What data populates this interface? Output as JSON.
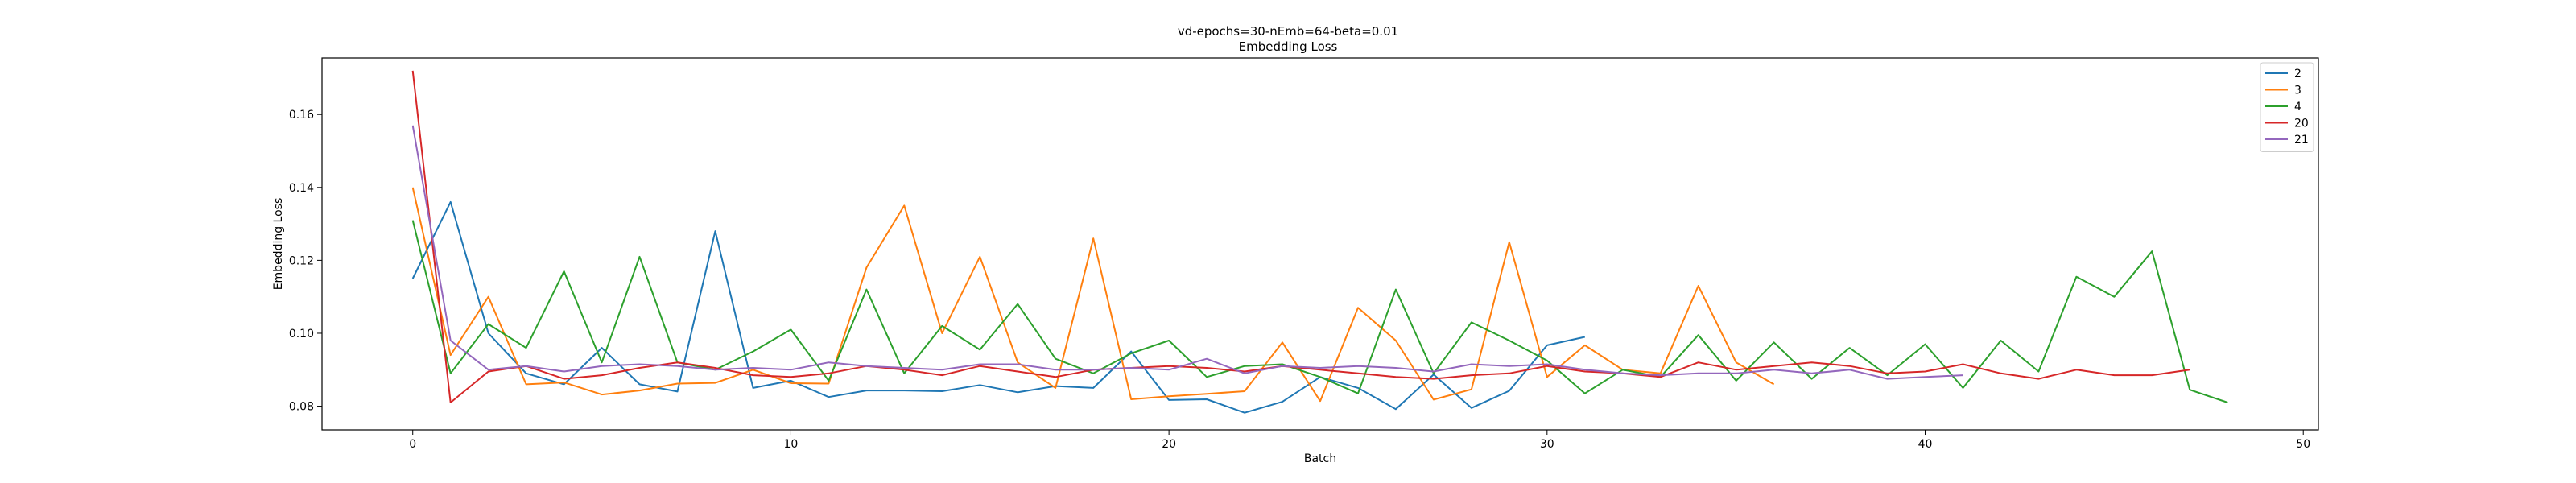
{
  "chart_data": {
    "type": "line",
    "title": "vd-epochs=30-nEmb=64-beta=0.01",
    "subtitle": "Embedding Loss",
    "xlabel": "Batch",
    "ylabel": "Embedding Loss",
    "xlim": [
      -2.4,
      50.4
    ],
    "ylim": [
      0.0735,
      0.1755
    ],
    "xticks": [
      0,
      10,
      20,
      30,
      40,
      50
    ],
    "yticks": [
      0.08,
      0.1,
      0.12,
      0.14,
      0.16
    ],
    "ytick_labels": [
      "0.08",
      "0.10",
      "0.12",
      "0.14",
      "0.16"
    ],
    "grid": false,
    "legend_position": "top-right",
    "series": [
      {
        "name": "2",
        "color": "#1f77b4",
        "values": [
          0.115,
          0.136,
          0.1,
          0.089,
          0.086,
          0.096,
          0.086,
          0.084,
          0.128,
          0.085,
          0.087,
          0.0825,
          0.0843,
          0.0843,
          0.0841,
          0.0858,
          0.0838,
          0.0855,
          0.085,
          0.095,
          0.0817,
          0.0819,
          0.0782,
          0.0812,
          0.088,
          0.085,
          0.0792,
          0.0887,
          0.0795,
          0.0842,
          0.0967,
          0.099
        ]
      },
      {
        "name": "3",
        "color": "#ff7f0e",
        "values": [
          0.14,
          0.094,
          0.11,
          0.086,
          0.0865,
          0.0832,
          0.0843,
          0.0862,
          0.0864,
          0.09,
          0.0863,
          0.0862,
          0.118,
          0.135,
          0.1,
          0.121,
          0.092,
          0.085,
          0.126,
          0.0819,
          0.0827,
          0.0834,
          0.0841,
          0.0975,
          0.0814,
          0.107,
          0.098,
          0.0818,
          0.0846,
          0.125,
          0.088,
          0.0967,
          0.09,
          0.089,
          0.113,
          0.092,
          0.086
        ]
      },
      {
        "name": "4",
        "color": "#2ca02c",
        "values": [
          0.131,
          0.089,
          0.1025,
          0.096,
          0.117,
          0.092,
          0.121,
          0.092,
          0.09,
          0.095,
          0.101,
          0.087,
          0.112,
          0.089,
          0.102,
          0.0955,
          0.108,
          0.093,
          0.089,
          0.0945,
          0.098,
          0.088,
          0.091,
          0.0915,
          0.088,
          0.0835,
          0.112,
          0.089,
          0.103,
          0.098,
          0.0925,
          0.0835,
          0.09,
          0.088,
          0.0995,
          0.087,
          0.0975,
          0.0875,
          0.096,
          0.0885,
          0.097,
          0.085,
          0.098,
          0.0895,
          0.1155,
          0.11,
          0.1225,
          0.0845,
          0.081
        ]
      },
      {
        "name": "20",
        "color": "#d62728",
        "values": [
          0.172,
          0.081,
          0.0895,
          0.091,
          0.0875,
          0.0885,
          0.0905,
          0.092,
          0.0905,
          0.0885,
          0.088,
          0.089,
          0.091,
          0.09,
          0.0885,
          0.091,
          0.0895,
          0.088,
          0.09,
          0.0905,
          0.091,
          0.0905,
          0.0895,
          0.091,
          0.09,
          0.089,
          0.088,
          0.0875,
          0.0885,
          0.089,
          0.091,
          0.0895,
          0.089,
          0.088,
          0.092,
          0.09,
          0.091,
          0.092,
          0.091,
          0.089,
          0.0895,
          0.0915,
          0.089,
          0.0875,
          0.09,
          0.0885,
          0.0885,
          0.09
        ]
      },
      {
        "name": "21",
        "color": "#9467bd",
        "values": [
          0.157,
          0.098,
          0.09,
          0.091,
          0.0895,
          0.091,
          0.0915,
          0.091,
          0.09,
          0.0905,
          0.09,
          0.092,
          0.091,
          0.0905,
          0.09,
          0.0915,
          0.0915,
          0.09,
          0.09,
          0.0905,
          0.09,
          0.093,
          0.089,
          0.091,
          0.0905,
          0.091,
          0.0905,
          0.0895,
          0.0915,
          0.091,
          0.0915,
          0.09,
          0.089,
          0.0885,
          0.089,
          0.089,
          0.09,
          0.089,
          0.09,
          0.0875,
          0.088,
          0.0885
        ]
      }
    ]
  }
}
